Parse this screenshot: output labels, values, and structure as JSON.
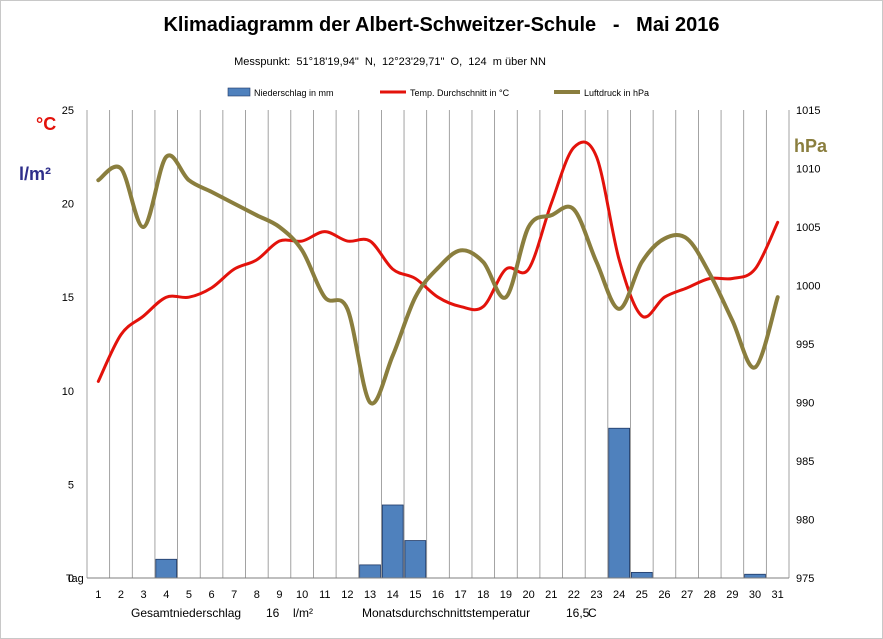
{
  "chart_data": {
    "type": "bar",
    "title": "Klimadiagramm der Albert-Schweitzer-Schule   -   Mai 2016",
    "subtitle": "Messpunkt:  51°18'19,94\"  N,  12°23'29,71\"  O,  124  m über NN",
    "x_axis_label": "Tag",
    "x": [
      1,
      2,
      3,
      4,
      5,
      6,
      7,
      8,
      9,
      10,
      11,
      12,
      13,
      14,
      15,
      16,
      17,
      18,
      19,
      20,
      21,
      22,
      23,
      24,
      25,
      26,
      27,
      28,
      29,
      30,
      31
    ],
    "left_axis": {
      "units": [
        "°C",
        "l/m²"
      ],
      "ylim": [
        0,
        25
      ],
      "ticks": [
        0,
        5,
        10,
        15,
        20,
        25
      ]
    },
    "right_axis": {
      "unit": "hPa",
      "ylim": [
        975,
        1015
      ],
      "ticks": [
        975,
        980,
        985,
        990,
        995,
        1000,
        1005,
        1010,
        1015
      ]
    },
    "legend_position": "top",
    "grid": "vertical",
    "series": [
      {
        "name": "Niederschlag in mm",
        "type": "bar",
        "axis": "left",
        "color": "#4f81bd",
        "values": [
          0,
          0,
          0,
          1,
          0,
          0,
          0,
          0,
          0,
          0,
          0,
          0,
          0.7,
          3.9,
          2,
          0,
          0,
          0,
          0,
          0,
          0,
          0,
          0,
          8,
          0.3,
          0,
          0,
          0,
          0,
          0.2,
          0
        ]
      },
      {
        "name": "Temp. Durchschnitt in °C",
        "type": "line",
        "axis": "left",
        "color": "#e3120b",
        "values": [
          10.5,
          13,
          14,
          15,
          15,
          15.5,
          16.5,
          17,
          18,
          18,
          18.5,
          18,
          18,
          16.5,
          16,
          15,
          14.5,
          14.5,
          16.5,
          16.5,
          20,
          23,
          22.5,
          17,
          14,
          15,
          15.5,
          16,
          16,
          16.5,
          19
        ]
      },
      {
        "name": "Luftdruck in hPa",
        "type": "line",
        "axis": "right",
        "color": "#8a7e3e",
        "values": [
          1009,
          1010,
          1005,
          1011,
          1009,
          1008,
          1007,
          1006,
          1005,
          1003,
          999,
          998,
          990,
          994,
          999,
          1001.5,
          1003,
          1002,
          999,
          1005,
          1006,
          1006.5,
          1002,
          998,
          1002,
          1004,
          1004,
          1001,
          997,
          993,
          999
        ]
      }
    ]
  },
  "units": {
    "temp": "°C",
    "precip": "l/m²",
    "pressure": "hPa"
  },
  "footer": {
    "precip_label": "Gesamtniederschlag",
    "precip_value": "16",
    "precip_unit": "l/m²",
    "temp_label": "Monatsdurchschnittstemperatur",
    "temp_value": "16,5",
    "temp_unit": "C"
  }
}
